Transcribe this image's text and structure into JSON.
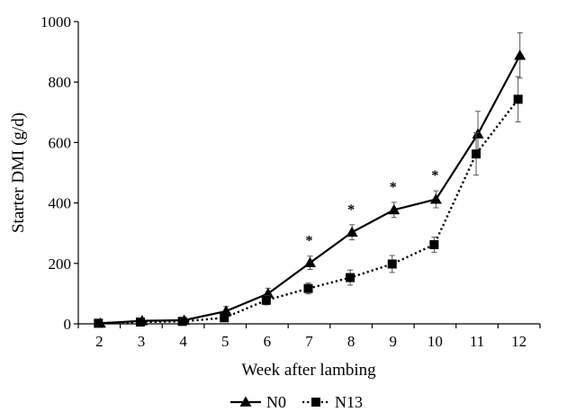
{
  "chart_data": {
    "type": "line",
    "xlabel": "Week after lambing",
    "ylabel": "Starter DMI (g/d)",
    "x": [
      2,
      3,
      4,
      5,
      6,
      7,
      8,
      9,
      10,
      11,
      12
    ],
    "ylim": [
      0,
      1000
    ],
    "yticks": [
      0,
      200,
      400,
      600,
      800,
      1000
    ],
    "legend_position": "bottom",
    "series": [
      {
        "name": "N0",
        "marker": "triangle",
        "line": "solid",
        "values": [
          2,
          10,
          12,
          42,
          100,
          202,
          303,
          377,
          412,
          628,
          888
        ],
        "errors": [
          3,
          4,
          5,
          15,
          18,
          22,
          25,
          25,
          28,
          75,
          75
        ]
      },
      {
        "name": "N13",
        "marker": "square",
        "line": "dotted",
        "values": [
          2,
          6,
          8,
          20,
          78,
          117,
          153,
          198,
          262,
          562,
          743
        ],
        "errors": [
          3,
          3,
          4,
          10,
          15,
          18,
          25,
          28,
          25,
          70,
          75
        ]
      }
    ],
    "significance": [
      {
        "x": 7,
        "label": "*"
      },
      {
        "x": 8,
        "label": "*"
      },
      {
        "x": 9,
        "label": "*"
      },
      {
        "x": 10,
        "label": "*"
      }
    ]
  }
}
